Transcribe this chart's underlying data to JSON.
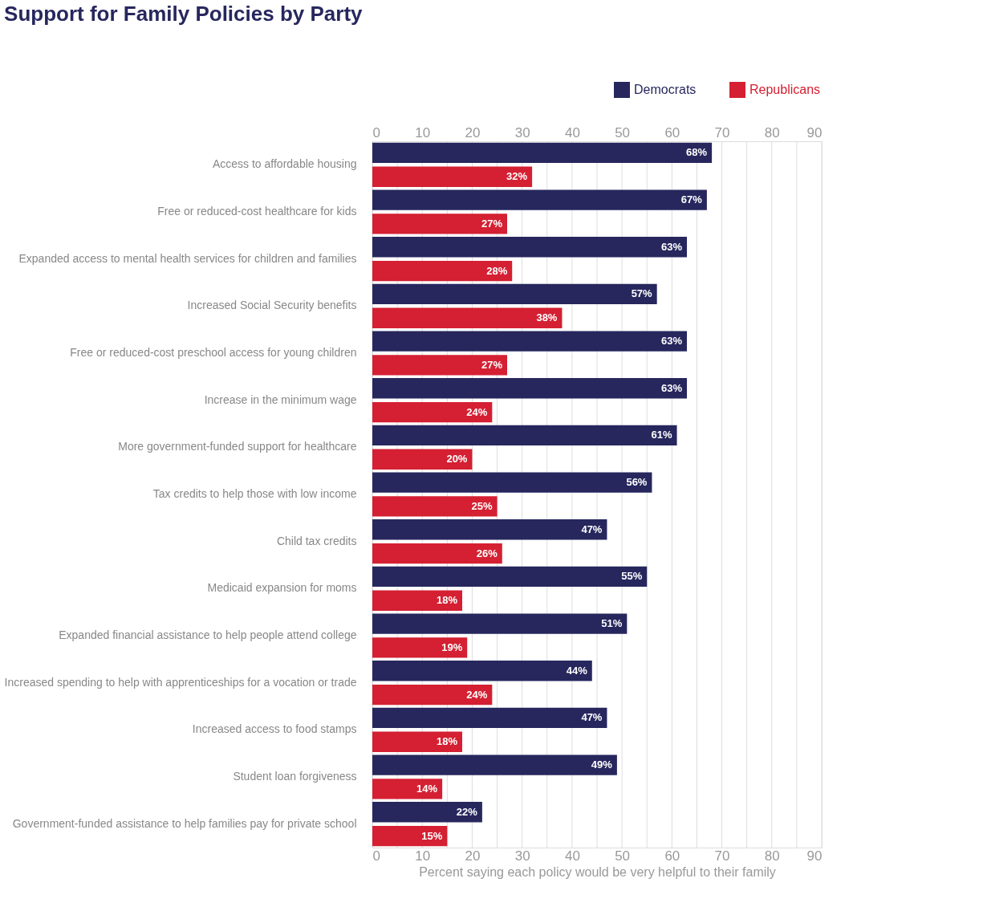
{
  "chart_data": {
    "type": "bar",
    "orientation": "horizontal",
    "title": "Support for Family Policies by Party",
    "xlabel": "Percent saying each policy would be very helpful to their family",
    "categories": [
      "Access to affordable housing",
      "Free or reduced-cost healthcare for kids",
      "Expanded access to mental health services for children and families",
      "Increased Social Security benefits",
      "Free or reduced-cost preschool access for young children",
      "Increase in the minimum wage",
      "More government-funded support for healthcare",
      "Tax credits to help those with low income",
      "Child tax credits",
      "Medicaid expansion for moms",
      "Expanded financial assistance to help people attend college",
      "Increased spending to help with apprenticeships for a vocation or trade",
      "Increased access to food stamps",
      "Student loan forgiveness",
      "Government-funded assistance to help families pay for private school"
    ],
    "series": [
      {
        "name": "Democrats",
        "color": "#27275e",
        "values": [
          68,
          67,
          63,
          57,
          63,
          63,
          61,
          56,
          47,
          55,
          51,
          44,
          47,
          49,
          22
        ],
        "value_labels": [
          "68%",
          "67%",
          "63%",
          "57%",
          "63%",
          "63%",
          "61%",
          "56%",
          "47%",
          "55%",
          "51%",
          "44%",
          "47%",
          "49%",
          "22%"
        ]
      },
      {
        "name": "Republicans",
        "color": "#d42032",
        "values": [
          32,
          27,
          28,
          38,
          27,
          24,
          20,
          25,
          26,
          18,
          19,
          24,
          18,
          14,
          15
        ],
        "value_labels": [
          "32%",
          "27%",
          "28%",
          "38%",
          "27%",
          "24%",
          "20%",
          "25%",
          "26%",
          "18%",
          "19%",
          "24%",
          "18%",
          "14%",
          "15%"
        ]
      }
    ],
    "xlim": [
      0,
      90
    ],
    "xticks": [
      0,
      {
        "value": 5,
        "label": null
      },
      10,
      {
        "value": 15,
        "label": null
      },
      20,
      {
        "value": 25,
        "label": null
      },
      30,
      {
        "value": 35,
        "label": null
      },
      40,
      {
        "value": 45,
        "label": null
      },
      50,
      {
        "value": 55,
        "label": null
      },
      60,
      {
        "value": 65,
        "label": null
      },
      70,
      {
        "value": 75,
        "label": null
      },
      80,
      {
        "value": 85,
        "label": null
      },
      90
    ],
    "x2lim": [
      0,
      90
    ],
    "x2ticks": [
      0,
      10,
      20,
      30,
      40,
      50,
      60,
      70,
      80,
      90
    ],
    "grid": "x",
    "legend": "top right"
  }
}
